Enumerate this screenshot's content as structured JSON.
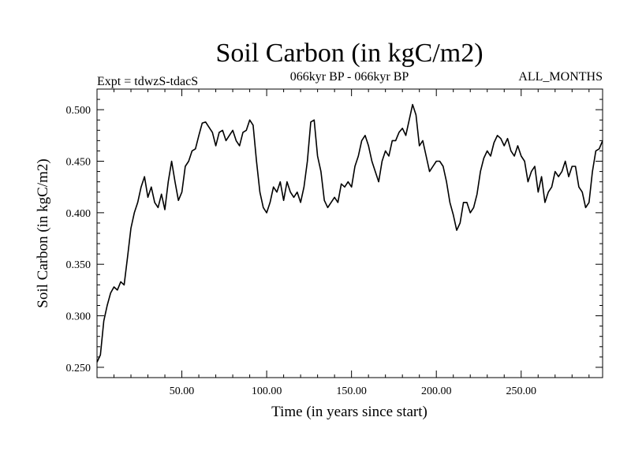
{
  "chart_data": {
    "type": "line",
    "title": "Soil Carbon (in kgC/m2)",
    "subtitle_left": "Expt = tdwzS-tdacS",
    "subtitle_center": "066kyr BP - 066kyr BP",
    "subtitle_right": "ALL_MONTHS",
    "xlabel": "Time (in years since start)",
    "ylabel": "Soil Carbon (in kgC/m2)",
    "xlim": [
      0,
      298
    ],
    "ylim": [
      0.24,
      0.52
    ],
    "x_ticks": [
      50,
      100,
      150,
      200,
      250
    ],
    "x_tick_labels": [
      "50.00",
      "100.00",
      "150.00",
      "200.00",
      "250.00"
    ],
    "y_ticks": [
      0.25,
      0.3,
      0.35,
      0.4,
      0.45,
      0.5
    ],
    "y_tick_labels": [
      "0.250",
      "0.300",
      "0.350",
      "0.400",
      "0.450",
      "0.500"
    ],
    "series": [
      {
        "name": "Soil Carbon",
        "x": [
          0,
          2,
          4,
          6,
          8,
          10,
          12,
          14,
          16,
          18,
          20,
          22,
          24,
          26,
          28,
          30,
          32,
          34,
          36,
          38,
          40,
          42,
          44,
          46,
          48,
          50,
          52,
          54,
          56,
          58,
          60,
          62,
          64,
          66,
          68,
          70,
          72,
          74,
          76,
          78,
          80,
          82,
          84,
          86,
          88,
          90,
          92,
          94,
          96,
          98,
          100,
          102,
          104,
          106,
          108,
          110,
          112,
          114,
          116,
          118,
          120,
          122,
          124,
          126,
          128,
          130,
          132,
          134,
          136,
          138,
          140,
          142,
          144,
          146,
          148,
          150,
          152,
          154,
          156,
          158,
          160,
          162,
          164,
          166,
          168,
          170,
          172,
          174,
          176,
          178,
          180,
          182,
          184,
          186,
          188,
          190,
          192,
          194,
          196,
          198,
          200,
          202,
          204,
          206,
          208,
          210,
          212,
          214,
          216,
          218,
          220,
          222,
          224,
          226,
          228,
          230,
          232,
          234,
          236,
          238,
          240,
          242,
          244,
          246,
          248,
          250,
          252,
          254,
          256,
          258,
          260,
          262,
          264,
          266,
          268,
          270,
          272,
          274,
          276,
          278,
          280,
          282,
          284,
          286,
          288,
          290,
          292,
          294,
          296,
          298
        ],
        "y": [
          0.255,
          0.262,
          0.295,
          0.31,
          0.322,
          0.328,
          0.325,
          0.333,
          0.33,
          0.357,
          0.385,
          0.4,
          0.41,
          0.425,
          0.435,
          0.415,
          0.425,
          0.41,
          0.405,
          0.418,
          0.403,
          0.43,
          0.45,
          0.43,
          0.412,
          0.42,
          0.445,
          0.45,
          0.46,
          0.462,
          0.475,
          0.487,
          0.488,
          0.483,
          0.478,
          0.465,
          0.478,
          0.48,
          0.47,
          0.475,
          0.48,
          0.47,
          0.465,
          0.478,
          0.48,
          0.49,
          0.485,
          0.45,
          0.42,
          0.405,
          0.4,
          0.41,
          0.425,
          0.42,
          0.43,
          0.412,
          0.43,
          0.42,
          0.415,
          0.42,
          0.41,
          0.425,
          0.45,
          0.488,
          0.49,
          0.455,
          0.44,
          0.412,
          0.405,
          0.41,
          0.415,
          0.41,
          0.428,
          0.425,
          0.43,
          0.425,
          0.445,
          0.455,
          0.47,
          0.475,
          0.465,
          0.45,
          0.44,
          0.43,
          0.45,
          0.46,
          0.455,
          0.47,
          0.47,
          0.478,
          0.482,
          0.475,
          0.49,
          0.505,
          0.495,
          0.465,
          0.47,
          0.455,
          0.44,
          0.445,
          0.45,
          0.45,
          0.445,
          0.43,
          0.41,
          0.398,
          0.383,
          0.39,
          0.41,
          0.41,
          0.4,
          0.405,
          0.418,
          0.44,
          0.453,
          0.46,
          0.455,
          0.468,
          0.475,
          0.472,
          0.465,
          0.472,
          0.46,
          0.455,
          0.465,
          0.455,
          0.45,
          0.43,
          0.44,
          0.445,
          0.42,
          0.435,
          0.41,
          0.42,
          0.425,
          0.44,
          0.435,
          0.44,
          0.45,
          0.435,
          0.445,
          0.445,
          0.425,
          0.42,
          0.405,
          0.41,
          0.44,
          0.46,
          0.462,
          0.47
        ]
      }
    ]
  }
}
